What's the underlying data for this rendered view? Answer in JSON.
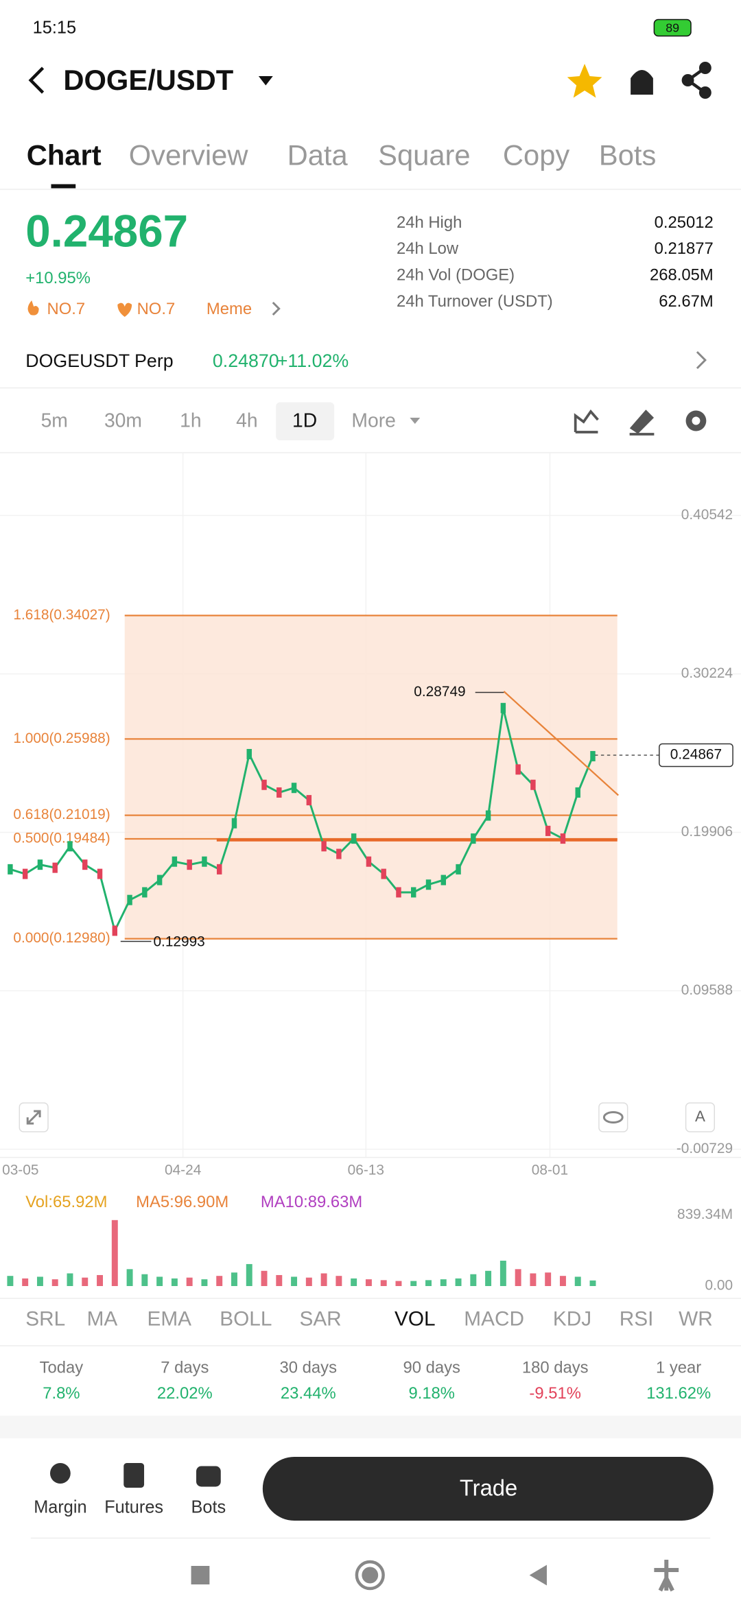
{
  "status_bar": {
    "time": "15:15",
    "battery": "89"
  },
  "header": {
    "title": "DOGE/USDT"
  },
  "tabs": [
    "Chart",
    "Overview",
    "Data",
    "Square",
    "Copy",
    "Bots"
  ],
  "price": {
    "last": "0.24867",
    "change": "+10.95%",
    "hot_rank": "NO.7",
    "fav_rank": "NO.7",
    "tag": "Meme"
  },
  "stats": [
    {
      "label": "24h High",
      "value": "0.25012"
    },
    {
      "label": "24h Low",
      "value": "0.21877"
    },
    {
      "label": "24h Vol (DOGE)",
      "value": "268.05M"
    },
    {
      "label": "24h Turnover (USDT)",
      "value": "62.67M"
    }
  ],
  "perp": {
    "name": "DOGEUSDT Perp",
    "price": "0.24870",
    "change": "+11.02%"
  },
  "intervals": [
    "5m",
    "30m",
    "1h",
    "4h",
    "1D"
  ],
  "more": "More",
  "chart": {
    "ylim": [
      -0.00729,
      0.40542
    ],
    "yticks": [
      0.40542,
      0.30224,
      0.19906,
      0.09588,
      -0.00729
    ],
    "x_labels": [
      "03-05",
      "04-24",
      "06-13",
      "08-01"
    ],
    "fib_levels": [
      {
        "value": 0.34027,
        "label": "1.618(0.34027)"
      },
      {
        "value": 0.25988,
        "label": "1.000(0.25988)"
      },
      {
        "value": 0.21019,
        "label": "0.618(0.21019)"
      },
      {
        "value": 0.19484,
        "label": "0.500(0.19484)"
      },
      {
        "value": 0.1298,
        "label": "0.000(0.12980)"
      }
    ],
    "high_label": "0.28749",
    "low_label": "0.12993",
    "current_label": "0.24867",
    "closes": [
      0.175,
      0.172,
      0.178,
      0.176,
      0.19,
      0.178,
      0.172,
      0.135,
      0.155,
      0.16,
      0.168,
      0.18,
      0.178,
      0.18,
      0.175,
      0.205,
      0.25,
      0.23,
      0.225,
      0.228,
      0.22,
      0.19,
      0.185,
      0.195,
      0.18,
      0.172,
      0.16,
      0.16,
      0.165,
      0.168,
      0.175,
      0.195,
      0.21,
      0.28,
      0.24,
      0.23,
      0.2,
      0.195,
      0.225,
      0.24867
    ]
  },
  "volume": {
    "vol": "Vol:65.92M",
    "ma5": "MA5:96.90M",
    "ma10": "MA10:89.63M",
    "ylim": [
      0,
      839.34
    ],
    "yticks": [
      {
        "value": 839.34,
        "label": "839.34M"
      },
      {
        "value": 0,
        "label": "0.00"
      }
    ],
    "values": [
      120,
      90,
      110,
      80,
      150,
      100,
      130,
      780,
      200,
      140,
      110,
      90,
      100,
      80,
      120,
      160,
      260,
      180,
      130,
      110,
      100,
      150,
      120,
      90,
      80,
      70,
      60,
      60,
      70,
      80,
      90,
      140,
      180,
      300,
      200,
      150,
      160,
      120,
      110,
      66
    ]
  },
  "indicators": [
    "SRL",
    "MA",
    "EMA",
    "BOLL",
    "SAR",
    "VOL",
    "MACD",
    "KDJ",
    "RSI",
    "WR"
  ],
  "performance": [
    {
      "label": "Today",
      "value": "7.8%"
    },
    {
      "label": "7 days",
      "value": "22.02%"
    },
    {
      "label": "30 days",
      "value": "23.44%"
    },
    {
      "label": "90 days",
      "value": "9.18%"
    },
    {
      "label": "180 days",
      "value": "-9.51%"
    },
    {
      "label": "1 year",
      "value": "131.62%"
    }
  ],
  "bottom_nav": [
    "Margin",
    "Futures",
    "Bots"
  ],
  "trade": "Trade"
}
